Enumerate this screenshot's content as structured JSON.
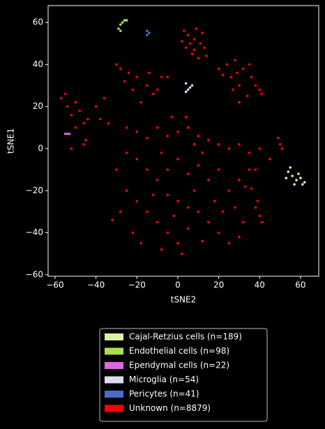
{
  "chart_data": {
    "type": "scatter",
    "xlabel": "tSNE2",
    "ylabel": "tSNE1",
    "xlim": [
      -63.4,
      68.9
    ],
    "ylim": [
      -60.7,
      68
    ],
    "xticks": [
      {
        "value": -60,
        "label": "−60"
      },
      {
        "value": -40,
        "label": "−40"
      },
      {
        "value": -20,
        "label": "−20"
      },
      0,
      20,
      40,
      60
    ],
    "yticks": [
      {
        "value": -60,
        "label": "−60"
      },
      {
        "value": -40,
        "label": "−40"
      },
      {
        "value": -20,
        "label": "−20"
      },
      0,
      20,
      40,
      60
    ],
    "legend_loc": "below",
    "series": [
      {
        "name": "Cajal-Retzius cells (n=189)",
        "color": "#d9f0a3",
        "x": [
          54,
          56,
          58,
          60,
          62,
          57,
          55,
          59,
          61,
          53
        ],
        "values": [
          -11,
          -13,
          -15,
          -14,
          -16,
          -17,
          -9,
          -12,
          -17,
          -14
        ]
      },
      {
        "name": "Endothelial cells (n=98)",
        "color": "#addd52",
        "x": [
          -29,
          -28,
          -27,
          -26,
          -25,
          -28
        ],
        "values": [
          57,
          59,
          60,
          61,
          61,
          56
        ]
      },
      {
        "name": "Ependymal cells (n=22)",
        "color": "#e066e0",
        "x": [
          -55,
          -54,
          -53
        ],
        "values": [
          7,
          7,
          7
        ]
      },
      {
        "name": "Microglia (n=54)",
        "color": "#dcdcf0",
        "x": [
          4,
          5,
          6,
          7,
          4
        ],
        "values": [
          27,
          28,
          29,
          30,
          31
        ]
      },
      {
        "name": "Pericytes (n=41)",
        "color": "#4a6bc8",
        "x": [
          -15,
          -14,
          -15
        ],
        "values": [
          54,
          55,
          56
        ]
      },
      {
        "name": "Unknown (n=8879)",
        "color": "#ff0000",
        "x": [
          3,
          5,
          8,
          11,
          13,
          4,
          7,
          10,
          6,
          12,
          9,
          14,
          2,
          8,
          20,
          24,
          28,
          32,
          36,
          40,
          34,
          30,
          26,
          22,
          38,
          30,
          27,
          35,
          41,
          29,
          -28,
          -24,
          -20,
          -15,
          -12,
          -22,
          -26,
          -18,
          -10,
          -30,
          -14,
          -8,
          -5,
          -57,
          -54,
          -52,
          -50,
          -48,
          -46,
          -55,
          -50,
          -44,
          -40,
          -36,
          -38,
          -34,
          -52,
          -45,
          -46,
          -25,
          -20,
          -15,
          -10,
          -5,
          0,
          5,
          10,
          15,
          20,
          25,
          30,
          35,
          -20,
          -15,
          -10,
          -5,
          0,
          5,
          10,
          15,
          20,
          25,
          30,
          -25,
          -20,
          -15,
          -10,
          -5,
          0,
          5,
          10,
          15,
          20,
          25,
          30,
          -22,
          -18,
          -8,
          2,
          12,
          -28,
          -30,
          -25,
          0,
          -5,
          8,
          18,
          22,
          -12,
          5,
          -2,
          28,
          32,
          -32,
          35,
          40,
          45,
          38,
          -3,
          4,
          8,
          -8,
          12,
          49,
          50,
          51,
          38,
          40,
          41,
          39,
          36,
          33
        ],
        "values": [
          56,
          54,
          52,
          50,
          48,
          48,
          45,
          43,
          50,
          55,
          57,
          44,
          51,
          47,
          38,
          40,
          42,
          38,
          34,
          28,
          25,
          30,
          34,
          35,
          30,
          22,
          28,
          40,
          26,
          36,
          38,
          36,
          34,
          30,
          26,
          28,
          32,
          22,
          28,
          40,
          36,
          34,
          34,
          24,
          20,
          16,
          22,
          18,
          12,
          26,
          10,
          14,
          20,
          24,
          14,
          12,
          0,
          4,
          2,
          10,
          8,
          5,
          10,
          6,
          8,
          10,
          6,
          4,
          2,
          0,
          2,
          -2,
          -5,
          -10,
          -15,
          -10,
          -5,
          -12,
          -8,
          -15,
          -10,
          -20,
          -15,
          -20,
          -25,
          -30,
          -35,
          -40,
          -45,
          -38,
          -30,
          -35,
          -40,
          -45,
          -42,
          -40,
          -45,
          -48,
          -50,
          -44,
          -30,
          -10,
          -2,
          -25,
          -22,
          -20,
          -25,
          -30,
          -22,
          -28,
          -32,
          -28,
          -35,
          -34,
          -10,
          0,
          -5,
          -10,
          15,
          15,
          2,
          -2,
          -2,
          5,
          2,
          0,
          -28,
          -32,
          -35,
          -25,
          -19,
          -18
        ]
      }
    ]
  }
}
